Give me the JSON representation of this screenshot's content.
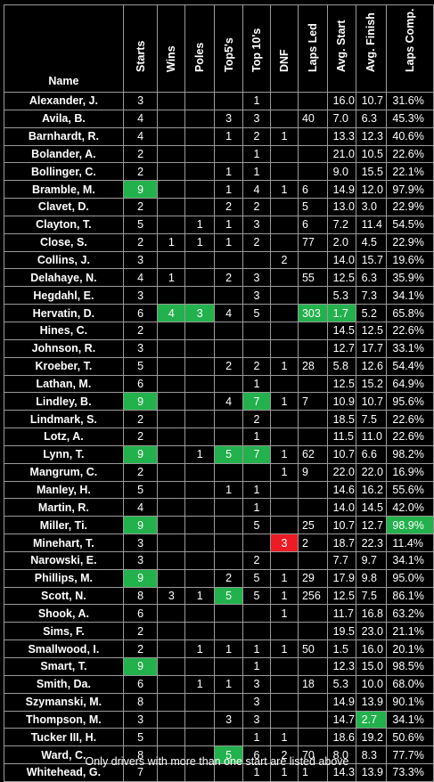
{
  "headers": [
    "Name",
    "Starts",
    "Wins",
    "Poles",
    "Top5's",
    "Top 10's",
    "DNF",
    "Laps Led",
    "Avg. Start",
    "Avg. Finish",
    "Laps Comp. %"
  ],
  "rows": [
    {
      "cells": [
        "Alexander, J.",
        "3",
        "",
        "",
        "",
        "1",
        "",
        "",
        "16.0",
        "10.7",
        "31.6%"
      ],
      "hl": {}
    },
    {
      "cells": [
        "Avila, B.",
        "4",
        "",
        "",
        "3",
        "3",
        "",
        "40",
        "7.0",
        "6.3",
        "45.3%"
      ],
      "hl": {}
    },
    {
      "cells": [
        "Barnhardt, R.",
        "4",
        "",
        "",
        "1",
        "2",
        "1",
        "",
        "13.3",
        "12.3",
        "40.6%"
      ],
      "hl": {}
    },
    {
      "cells": [
        "Bolander, A.",
        "2",
        "",
        "",
        "",
        "1",
        "",
        "",
        "21.0",
        "10.5",
        "22.6%"
      ],
      "hl": {}
    },
    {
      "cells": [
        "Bollinger, C.",
        "2",
        "",
        "",
        "1",
        "1",
        "",
        "",
        "9.0",
        "15.5",
        "22.1%"
      ],
      "hl": {}
    },
    {
      "cells": [
        "Bramble, M.",
        "9",
        "",
        "",
        "1",
        "4",
        "1",
        "6",
        "14.9",
        "12.0",
        "97.9%"
      ],
      "hl": {
        "1": "g"
      }
    },
    {
      "cells": [
        "Clavet, D.",
        "2",
        "",
        "",
        "2",
        "2",
        "",
        "5",
        "13.0",
        "3.0",
        "22.9%"
      ],
      "hl": {}
    },
    {
      "cells": [
        "Clayton, T.",
        "5",
        "",
        "1",
        "1",
        "3",
        "",
        "6",
        "7.2",
        "11.4",
        "54.5%"
      ],
      "hl": {}
    },
    {
      "cells": [
        "Close, S.",
        "2",
        "1",
        "1",
        "1",
        "2",
        "",
        "77",
        "2.0",
        "4.5",
        "22.9%"
      ],
      "hl": {}
    },
    {
      "cells": [
        "Collins, J.",
        "3",
        "",
        "",
        "",
        "",
        "2",
        "",
        "14.0",
        "15.7",
        "19.6%"
      ],
      "hl": {}
    },
    {
      "cells": [
        "Delahaye, N.",
        "4",
        "1",
        "",
        "2",
        "3",
        "",
        "55",
        "12.5",
        "6.3",
        "35.9%"
      ],
      "hl": {}
    },
    {
      "cells": [
        "Hegdahl, E.",
        "3",
        "",
        "",
        "",
        "3",
        "",
        "",
        "5.3",
        "7.3",
        "34.1%"
      ],
      "hl": {}
    },
    {
      "cells": [
        "Hervatin, D.",
        "6",
        "4",
        "3",
        "4",
        "5",
        "",
        "303",
        "1.7",
        "5.2",
        "65.8%"
      ],
      "hl": {
        "2": "g",
        "3": "g",
        "7": "g",
        "8": "g"
      }
    },
    {
      "cells": [
        "Hines, C.",
        "2",
        "",
        "",
        "",
        "",
        "",
        "",
        "14.5",
        "12.5",
        "22.6%"
      ],
      "hl": {}
    },
    {
      "cells": [
        "Johnson, R.",
        "3",
        "",
        "",
        "",
        "",
        "",
        "",
        "12.7",
        "17.7",
        "33.1%"
      ],
      "hl": {}
    },
    {
      "cells": [
        "Kroeber, T.",
        "5",
        "",
        "",
        "2",
        "2",
        "1",
        "28",
        "5.8",
        "12.6",
        "54.4%"
      ],
      "hl": {}
    },
    {
      "cells": [
        "Lathan, M.",
        "6",
        "",
        "",
        "",
        "1",
        "",
        "",
        "12.5",
        "15.2",
        "64.9%"
      ],
      "hl": {}
    },
    {
      "cells": [
        "Lindley, B.",
        "9",
        "",
        "",
        "4",
        "7",
        "1",
        "7",
        "10.9",
        "10.7",
        "95.6%"
      ],
      "hl": {
        "1": "g",
        "5": "g"
      }
    },
    {
      "cells": [
        "Lindmark, S.",
        "2",
        "",
        "",
        "",
        "2",
        "",
        "",
        "18.5",
        "7.5",
        "22.6%"
      ],
      "hl": {}
    },
    {
      "cells": [
        "Lotz, A.",
        "2",
        "",
        "",
        "",
        "1",
        "",
        "",
        "11.5",
        "11.0",
        "22.6%"
      ],
      "hl": {}
    },
    {
      "cells": [
        "Lynn, T.",
        "9",
        "",
        "1",
        "5",
        "7",
        "1",
        "62",
        "10.7",
        "6.6",
        "98.2%"
      ],
      "hl": {
        "1": "g",
        "4": "g",
        "5": "g"
      }
    },
    {
      "cells": [
        "Mangrum, C.",
        "2",
        "",
        "",
        "",
        "",
        "1",
        "9",
        "22.0",
        "22.0",
        "16.9%"
      ],
      "hl": {}
    },
    {
      "cells": [
        "Manley, H.",
        "5",
        "",
        "",
        "1",
        "1",
        "",
        "",
        "14.6",
        "16.2",
        "55.6%"
      ],
      "hl": {}
    },
    {
      "cells": [
        "Martin, R.",
        "4",
        "",
        "",
        "",
        "1",
        "",
        "",
        "14.0",
        "14.5",
        "42.0%"
      ],
      "hl": {}
    },
    {
      "cells": [
        "Miller, Ti.",
        "9",
        "",
        "",
        "",
        "5",
        "",
        "25",
        "10.7",
        "12.7",
        "98.9%"
      ],
      "hl": {
        "1": "g",
        "10": "g"
      }
    },
    {
      "cells": [
        "Minehart, T.",
        "3",
        "",
        "",
        "",
        "",
        "3",
        "2",
        "18.7",
        "22.3",
        "11.4%"
      ],
      "hl": {
        "6": "r"
      }
    },
    {
      "cells": [
        "Narowski, E.",
        "3",
        "",
        "",
        "",
        "2",
        "",
        "",
        "7.7",
        "9.7",
        "34.1%"
      ],
      "hl": {}
    },
    {
      "cells": [
        "Phillips, M.",
        "9",
        "",
        "",
        "2",
        "5",
        "1",
        "29",
        "17.9",
        "9.8",
        "95.0%"
      ],
      "hl": {
        "1": "g"
      }
    },
    {
      "cells": [
        "Scott, N.",
        "8",
        "3",
        "1",
        "5",
        "5",
        "1",
        "256",
        "12.5",
        "7.5",
        "86.1%"
      ],
      "hl": {
        "4": "g"
      }
    },
    {
      "cells": [
        "Shook, A.",
        "6",
        "",
        "",
        "",
        "",
        "1",
        "",
        "11.7",
        "16.8",
        "63.2%"
      ],
      "hl": {}
    },
    {
      "cells": [
        "Sims, F.",
        "2",
        "",
        "",
        "",
        "",
        "",
        "",
        "19.5",
        "23.0",
        "21.1%"
      ],
      "hl": {}
    },
    {
      "cells": [
        "Smallwood, I.",
        "2",
        "",
        "1",
        "1",
        "1",
        "1",
        "50",
        "1.5",
        "16.0",
        "20.1%"
      ],
      "hl": {}
    },
    {
      "cells": [
        "Smart, T.",
        "9",
        "",
        "",
        "",
        "1",
        "",
        "",
        "12.3",
        "15.0",
        "98.5%"
      ],
      "hl": {
        "1": "g"
      }
    },
    {
      "cells": [
        "Smith, Da.",
        "6",
        "",
        "1",
        "1",
        "3",
        "",
        "18",
        "5.3",
        "10.0",
        "68.0%"
      ],
      "hl": {}
    },
    {
      "cells": [
        "Szymanski, M.",
        "8",
        "",
        "",
        "",
        "3",
        "",
        "",
        "14.9",
        "13.9",
        "90.1%"
      ],
      "hl": {}
    },
    {
      "cells": [
        "Thompson, M.",
        "3",
        "",
        "",
        "3",
        "3",
        "",
        "",
        "14.7",
        "2.7",
        "34.1%"
      ],
      "hl": {
        "9": "g"
      }
    },
    {
      "cells": [
        "Tucker III, H.",
        "5",
        "",
        "",
        "",
        "1",
        "1",
        "",
        "18.6",
        "19.2",
        "50.6%"
      ],
      "hl": {}
    },
    {
      "cells": [
        "Ward, C.",
        "8",
        "",
        "",
        "5",
        "6",
        "2",
        "70",
        "8.0",
        "8.3",
        "77.7%"
      ],
      "hl": {
        "4": "g"
      }
    },
    {
      "cells": [
        "Whitehead, G.",
        "7",
        "",
        "",
        "",
        "1",
        "1",
        "1",
        "14.3",
        "13.9",
        "73.3%"
      ],
      "hl": {}
    }
  ],
  "footnote": "Only drivers with more than one start are listed above",
  "colors": {
    "highlight_green": "#22b14c",
    "highlight_red": "#ed1c24",
    "background": "#000000"
  }
}
